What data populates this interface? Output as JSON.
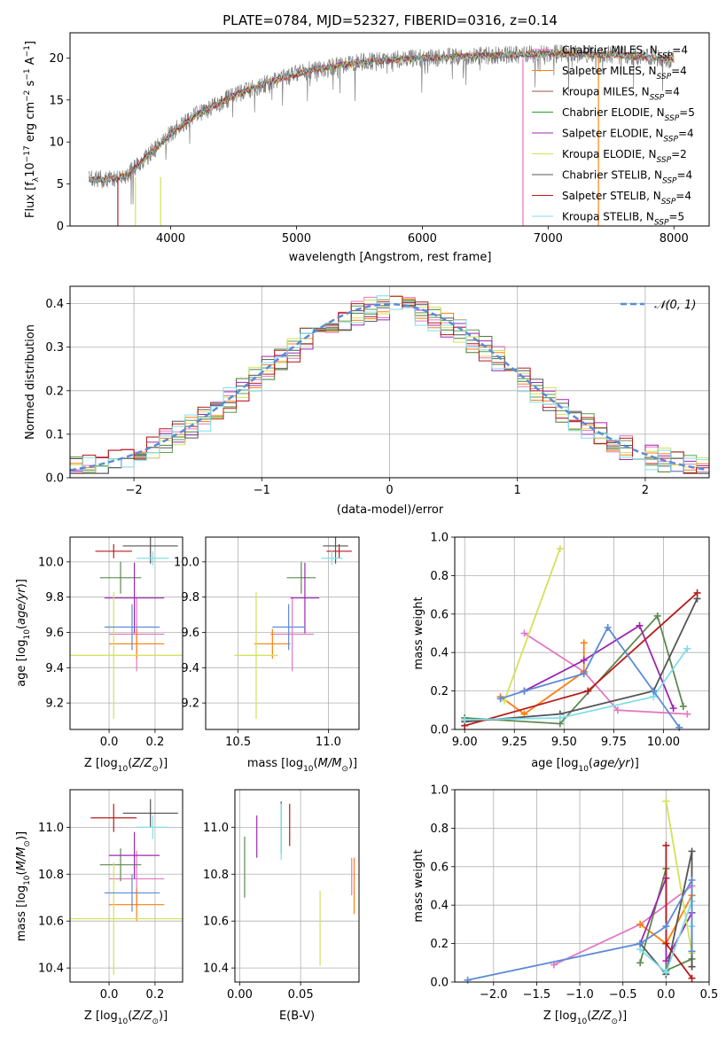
{
  "title": "PLATE=0784, MJD=52327, FIBERID=0316, z=0.14",
  "colors": [
    "#e377c2",
    "#ff7f0e",
    "#8c564b",
    "#2ca02c",
    "#9c27b0",
    "#d4e157",
    "#555555",
    "#b71c1c",
    "#80deea"
  ],
  "model_colors": [
    "#e377c2",
    "#ff7f0e",
    "#4a7c2a",
    "#5c9b4e",
    "#9c27b0",
    "#d4e157",
    "#555555",
    "#b71c1c",
    "#80deea"
  ],
  "chart_data": [
    {
      "type": "line",
      "id": "spectrum",
      "xlabel": "wavelength [Angstrom, rest frame]",
      "ylabel": "Flux [f",
      "xlim": [
        3200,
        8280
      ],
      "ylim": [
        0,
        23
      ],
      "xticks": [
        4000,
        5000,
        6000,
        7000,
        8000
      ],
      "yticks": [
        0,
        5,
        10,
        15,
        20
      ],
      "legend_position": "upper-right",
      "series": [
        {
          "label_main": "Chabrier MILES, N",
          "label_sub": "SSP",
          "label_tail": "=4",
          "color": "#e377c2"
        },
        {
          "label_main": "Salpeter MILES, N",
          "label_sub": "SSP",
          "label_tail": "=4",
          "color": "#ff7f0e"
        },
        {
          "label_main": "Kroupa MILES, N",
          "label_sub": "SSP",
          "label_tail": "=4",
          "color": "#8c564b"
        },
        {
          "label_main": "Chabrier ELODIE, N",
          "label_sub": "SSP",
          "label_tail": "=5",
          "color": "#2ca02c"
        },
        {
          "label_main": "Salpeter ELODIE, N",
          "label_sub": "SSP",
          "label_tail": "=4",
          "color": "#9c27b0"
        },
        {
          "label_main": "Kroupa ELODIE, N",
          "label_sub": "SSP",
          "label_tail": "=2",
          "color": "#d4e157"
        },
        {
          "label_main": "Chabrier STELIB, N",
          "label_sub": "SSP",
          "label_tail": "=4",
          "color": "#555555"
        },
        {
          "label_main": "Salpeter STELIB, N",
          "label_sub": "SSP",
          "label_tail": "=4",
          "color": "#b71c1c"
        },
        {
          "label_main": "Kroupa STELIB, N",
          "label_sub": "SSP",
          "label_tail": "=5",
          "color": "#80deea"
        }
      ],
      "continuum": [
        [
          3350,
          5.5
        ],
        [
          3500,
          5.6
        ],
        [
          3650,
          6.0
        ],
        [
          3900,
          9.5
        ],
        [
          4000,
          11.0
        ],
        [
          4200,
          13.2
        ],
        [
          4500,
          15.5
        ],
        [
          4800,
          17.2
        ],
        [
          5100,
          18.5
        ],
        [
          5500,
          19.5
        ],
        [
          6000,
          20.0
        ],
        [
          6500,
          20.3
        ],
        [
          7000,
          20.5
        ],
        [
          7500,
          20.4
        ],
        [
          8000,
          19.8
        ]
      ],
      "spectrum_range": [
        3350,
        8000
      ]
    },
    {
      "type": "histogram",
      "id": "residuals",
      "xlabel": "(data-model)/error",
      "ylabel": "Normed distribution",
      "xlim": [
        -2.5,
        2.5
      ],
      "ylim": [
        0,
        0.44
      ],
      "xticks": [
        -2,
        -1,
        0,
        1,
        2
      ],
      "yticks": [
        0.0,
        0.1,
        0.2,
        0.3,
        0.4
      ],
      "bin_width": 0.1,
      "legend": "𝒩(0, 1)",
      "gaussian_color": "#5b8bd6"
    },
    {
      "type": "errorbar",
      "id": "age-vs-Z",
      "xlabel_main": "Z [log",
      "xlabel_sub": "10",
      "xlabel_tail": "(Z/Z",
      "ylabel": "age  [log10(age/yr)]",
      "xlim": [
        -0.17,
        0.32
      ],
      "ylim": [
        9.05,
        10.14
      ],
      "xticks": [
        0.0,
        0.2
      ],
      "yticks": [
        9.2,
        9.4,
        9.6,
        9.8,
        10.0
      ],
      "points": [
        {
          "x": 0.12,
          "xerr": 0.12,
          "y": 9.59,
          "yerr": 0.21,
          "color": "#e377c2"
        },
        {
          "x": 0.12,
          "xerr": 0.12,
          "y": 9.535,
          "yerr": 0.085,
          "color": "#ff7f0e"
        },
        {
          "x": 0.02,
          "xerr": 0.08,
          "y": 10.06,
          "yerr": 0.04,
          "color": "#b71c1c"
        },
        {
          "x": 0.05,
          "xerr": 0.09,
          "y": 9.91,
          "yerr": 0.09,
          "color": "#5c8a4e"
        },
        {
          "x": 0.11,
          "xerr": 0.13,
          "y": 9.795,
          "yerr": 0.2,
          "color": "#9c27b0"
        },
        {
          "x": 0.02,
          "xerr": 0.35,
          "y": 9.47,
          "yerr": 0.36,
          "color": "#d4e157"
        },
        {
          "x": 0.18,
          "xerr": 0.12,
          "y": 10.09,
          "yerr": 0.1,
          "color": "#555555"
        },
        {
          "x": 0.19,
          "xerr": 0.07,
          "y": 10.02,
          "yerr": 0.04,
          "color": "#80deea"
        },
        {
          "x": 0.1,
          "xerr": 0.12,
          "y": 9.63,
          "yerr": 0.13,
          "color": "#5b8bd6"
        }
      ]
    },
    {
      "type": "errorbar",
      "id": "age-vs-mass",
      "xlabel": "mass [log",
      "xlim": [
        10.32,
        11.17
      ],
      "ylim": [
        9.05,
        10.14
      ],
      "xticks": [
        10.5,
        11.0
      ],
      "xtick_labels": [
        "10.5",
        "11.0"
      ],
      "yticks": [
        9.2,
        9.4,
        9.6,
        9.8,
        10.0
      ],
      "points": [
        {
          "x": 10.8,
          "xerr": 0.12,
          "y": 9.59,
          "yerr": 0.21,
          "color": "#e377c2"
        },
        {
          "x": 10.69,
          "xerr": 0.1,
          "y": 9.535,
          "yerr": 0.085,
          "color": "#ff7f0e"
        },
        {
          "x": 11.06,
          "xerr": 0.07,
          "y": 10.06,
          "yerr": 0.04,
          "color": "#b71c1c"
        },
        {
          "x": 10.85,
          "xerr": 0.08,
          "y": 9.91,
          "yerr": 0.09,
          "color": "#5c8a4e"
        },
        {
          "x": 10.87,
          "xerr": 0.08,
          "y": 9.795,
          "yerr": 0.2,
          "color": "#9c27b0"
        },
        {
          "x": 10.6,
          "xerr": 0.12,
          "y": 9.47,
          "yerr": 0.36,
          "color": "#d4e157"
        },
        {
          "x": 11.04,
          "xerr": 0.07,
          "y": 10.09,
          "yerr": 0.1,
          "color": "#555555"
        },
        {
          "x": 11.02,
          "xerr": 0.06,
          "y": 10.02,
          "yerr": 0.04,
          "color": "#80deea"
        },
        {
          "x": 10.78,
          "xerr": 0.09,
          "y": 9.63,
          "yerr": 0.13,
          "color": "#5b8bd6"
        }
      ]
    },
    {
      "type": "line",
      "id": "weight-vs-age",
      "xlabel": "age  [log10(age/yr)]",
      "ylabel": "mass weight",
      "xlim": [
        8.95,
        10.23
      ],
      "ylim": [
        0,
        1.0
      ],
      "xticks": [
        9.0,
        9.25,
        9.5,
        9.75,
        10.0
      ],
      "xtick_labels": [
        "9.00",
        "9.25",
        "9.50",
        "9.75",
        "10.00"
      ],
      "yticks": [
        0.0,
        0.2,
        0.4,
        0.6,
        0.8,
        1.0
      ],
      "series": [
        {
          "color": "#e377c2",
          "points": [
            [
              9.3,
              0.5
            ],
            [
              9.6,
              0.3
            ],
            [
              9.77,
              0.1
            ],
            [
              10.12,
              0.08
            ]
          ]
        },
        {
          "color": "#ff7f0e",
          "points": [
            [
              9.18,
              0.17
            ],
            [
              9.3,
              0.08
            ],
            [
              9.6,
              0.3
            ],
            [
              9.6,
              0.45
            ]
          ]
        },
        {
          "color": "#5c8a4e",
          "points": [
            [
              9.0,
              0.06
            ],
            [
              9.48,
              0.03
            ],
            [
              9.97,
              0.59
            ],
            [
              10.1,
              0.12
            ]
          ]
        },
        {
          "color": "#9c27b0",
          "points": [
            [
              9.3,
              0.2
            ],
            [
              9.6,
              0.36
            ],
            [
              9.88,
              0.54
            ],
            [
              10.05,
              0.11
            ]
          ]
        },
        {
          "color": "#d4e157",
          "points": [
            [
              9.2,
              0.15
            ],
            [
              9.48,
              0.94
            ]
          ]
        },
        {
          "color": "#555555",
          "points": [
            [
              9.0,
              0.04
            ],
            [
              9.48,
              0.08
            ],
            [
              9.95,
              0.2
            ],
            [
              10.17,
              0.68
            ]
          ]
        },
        {
          "color": "#b71c1c",
          "points": [
            [
              9.0,
              0.02
            ],
            [
              9.62,
              0.2
            ],
            [
              10.17,
              0.71
            ]
          ]
        },
        {
          "color": "#80deea",
          "points": [
            [
              9.0,
              0.05
            ],
            [
              9.48,
              0.06
            ],
            [
              9.95,
              0.17
            ],
            [
              10.12,
              0.42
            ]
          ]
        },
        {
          "color": "#5b8bd6",
          "points": [
            [
              9.18,
              0.16
            ],
            [
              9.3,
              0.2
            ],
            [
              9.6,
              0.29
            ],
            [
              9.72,
              0.53
            ],
            [
              9.95,
              0.2
            ],
            [
              10.08,
              0.01
            ]
          ]
        }
      ]
    },
    {
      "type": "errorbar",
      "id": "mass-vs-Z",
      "xlabel": "Z [log",
      "ylabel": "mass [log",
      "xlim": [
        -0.17,
        0.32
      ],
      "ylim": [
        10.34,
        11.16
      ],
      "xticks": [
        0.0,
        0.2
      ],
      "yticks": [
        10.4,
        10.6,
        10.8,
        11.0
      ],
      "points": [
        {
          "x": 0.12,
          "xerr": 0.12,
          "y": 10.78,
          "yerr": 0.12,
          "color": "#e377c2"
        },
        {
          "x": 0.12,
          "xerr": 0.12,
          "y": 10.67,
          "yerr": 0.07,
          "color": "#ff7f0e"
        },
        {
          "x": 0.02,
          "xerr": 0.1,
          "y": 11.04,
          "yerr": 0.06,
          "color": "#b71c1c"
        },
        {
          "x": 0.05,
          "xerr": 0.09,
          "y": 10.84,
          "yerr": 0.07,
          "color": "#5c8a4e"
        },
        {
          "x": 0.11,
          "xerr": 0.11,
          "y": 10.88,
          "yerr": 0.1,
          "color": "#9c27b0"
        },
        {
          "x": 0.02,
          "xerr": 0.35,
          "y": 10.61,
          "yerr": 0.24,
          "color": "#d4e157"
        },
        {
          "x": 0.18,
          "xerr": 0.12,
          "y": 11.06,
          "yerr": 0.06,
          "color": "#555555"
        },
        {
          "x": 0.19,
          "xerr": 0.07,
          "y": 11.0,
          "yerr": 0.05,
          "color": "#80deea"
        },
        {
          "x": 0.1,
          "xerr": 0.12,
          "y": 10.72,
          "yerr": 0.08,
          "color": "#5b8bd6"
        }
      ]
    },
    {
      "type": "errorbar",
      "id": "mass-vs-ebv",
      "xlabel": "E(B-V)",
      "xlim": [
        -0.004,
        0.098
      ],
      "ylim": [
        10.34,
        11.16
      ],
      "xticks": [
        0.0,
        0.05
      ],
      "xtick_labels": [
        "0.00",
        "0.05"
      ],
      "yticks": [
        10.4,
        10.6,
        10.8,
        11.0
      ],
      "points": [
        {
          "x": 0.092,
          "y": 10.79,
          "yerr": 0.08,
          "color": "#e377c2"
        },
        {
          "x": 0.094,
          "y": 10.75,
          "yerr": 0.12,
          "color": "#ff7f0e"
        },
        {
          "x": 0.004,
          "y": 10.83,
          "yerr": 0.13,
          "color": "#5c8a4e"
        },
        {
          "x": 0.014,
          "y": 10.96,
          "yerr": 0.09,
          "color": "#9c27b0"
        },
        {
          "x": 0.066,
          "y": 10.57,
          "yerr": 0.16,
          "color": "#d4e157"
        },
        {
          "x": 0.034,
          "y": 11.0,
          "yerr": 0.11,
          "color": "#555555"
        },
        {
          "x": 0.041,
          "y": 11.01,
          "yerr": 0.09,
          "color": "#b71c1c"
        },
        {
          "x": 0.034,
          "y": 10.98,
          "yerr": 0.12,
          "color": "#80deea"
        }
      ]
    },
    {
      "type": "line",
      "id": "weight-vs-Z",
      "xlabel": "Z [log",
      "ylabel": "mass weight",
      "xlim": [
        -2.45,
        0.5
      ],
      "ylim": [
        0,
        1.0
      ],
      "xticks": [
        -2.0,
        -1.5,
        -1.0,
        -0.5,
        0.0,
        0.5
      ],
      "xtick_labels": [
        "−2.0",
        "−1.5",
        "−1.0",
        "−0.5",
        "0.0",
        "0.5"
      ],
      "yticks": [
        0.0,
        0.2,
        0.4,
        0.6,
        0.8,
        1.0
      ],
      "series": [
        {
          "color": "#e377c2",
          "points": [
            [
              -1.3,
              0.09
            ],
            [
              -0.3,
              0.3
            ],
            [
              0.3,
              0.5
            ]
          ]
        },
        {
          "color": "#ff7f0e",
          "points": [
            [
              -0.3,
              0.3
            ],
            [
              0.0,
              0.2
            ],
            [
              0.3,
              0.45
            ],
            [
              0.3,
              0.08
            ]
          ]
        },
        {
          "color": "#5c8a4e",
          "points": [
            [
              -0.3,
              0.1
            ],
            [
              0.0,
              0.59
            ],
            [
              0.0,
              0.06
            ],
            [
              0.3,
              0.12
            ]
          ]
        },
        {
          "color": "#9c27b0",
          "points": [
            [
              -0.3,
              0.2
            ],
            [
              0.0,
              0.54
            ],
            [
              0.0,
              0.11
            ],
            [
              0.3,
              0.36
            ]
          ]
        },
        {
          "color": "#d4e157",
          "points": [
            [
              0.0,
              0.94
            ],
            [
              0.3,
              0.15
            ]
          ]
        },
        {
          "color": "#555555",
          "points": [
            [
              -0.3,
              0.2
            ],
            [
              0.0,
              0.04
            ],
            [
              0.3,
              0.68
            ],
            [
              0.3,
              0.08
            ]
          ]
        },
        {
          "color": "#b71c1c",
          "points": [
            [
              0.0,
              0.71
            ],
            [
              0.0,
              0.2
            ],
            [
              0.3,
              0.02
            ]
          ]
        },
        {
          "color": "#80deea",
          "points": [
            [
              -0.3,
              0.17
            ],
            [
              0.0,
              0.05
            ],
            [
              0.3,
              0.42
            ],
            [
              0.3,
              0.29
            ]
          ]
        },
        {
          "color": "#5b8bd6",
          "points": [
            [
              -2.3,
              0.01
            ],
            [
              -0.3,
              0.2
            ],
            [
              0.0,
              0.29
            ],
            [
              0.3,
              0.53
            ],
            [
              0.3,
              0.16
            ]
          ]
        }
      ]
    }
  ]
}
